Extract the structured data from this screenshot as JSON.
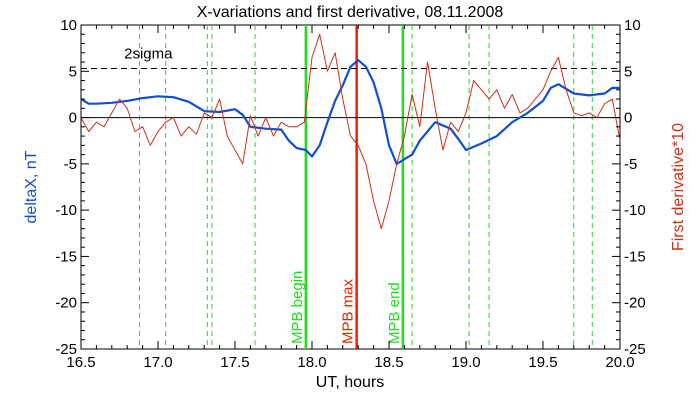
{
  "chart_data": {
    "type": "line",
    "title": "X-variations and first derivative, 08.11.2008",
    "xlabel": "UT, hours",
    "ylabel_left": "deltaX, nT",
    "ylabel_right": "First derivative*10",
    "xlim": [
      16.5,
      20.0
    ],
    "ylim": [
      -25,
      10
    ],
    "y2lim": [
      -25,
      10
    ],
    "x_ticks": [
      "16.5",
      "17.0",
      "17.5",
      "18.0",
      "18.5",
      "19.0",
      "19.5",
      "20.0"
    ],
    "y_ticks": [
      "10",
      "5",
      "0",
      "-5",
      "-10",
      "-15",
      "-20",
      "-25"
    ],
    "y2_ticks": [
      "10",
      "5",
      "0",
      "-5",
      "-10",
      "-15",
      "-20",
      "-25"
    ],
    "grid": false,
    "colors": {
      "deltaX": "#1050d0",
      "derivative": "#c83218",
      "mpb_edges": "#22dd22",
      "mpb_max": "#ee2200",
      "dashed_green": "#33cc33",
      "threshold": "#000000"
    },
    "series": [
      {
        "axis": "left",
        "x": [
          16.5,
          16.55,
          16.6,
          16.7,
          16.8,
          16.9,
          17.0,
          17.1,
          17.2,
          17.3,
          17.4,
          17.5,
          17.55,
          17.6,
          17.7,
          17.8,
          17.85,
          17.9,
          17.96,
          18.0,
          18.05,
          18.1,
          18.15,
          18.2,
          18.25,
          18.3,
          18.35,
          18.4,
          18.45,
          18.5,
          18.55,
          18.6,
          18.65,
          18.7,
          18.8,
          18.9,
          18.95,
          19.0,
          19.1,
          19.2,
          19.3,
          19.4,
          19.5,
          19.55,
          19.6,
          19.7,
          19.8,
          19.85,
          19.9,
          19.95,
          20.0
        ],
        "y": [
          2.0,
          1.5,
          1.5,
          1.6,
          1.8,
          2.1,
          2.3,
          2.2,
          1.7,
          0.7,
          0.6,
          0.9,
          0.3,
          -1.0,
          -1.2,
          -1.3,
          -2.5,
          -3.3,
          -3.5,
          -4.2,
          -3.0,
          -0.5,
          1.8,
          3.5,
          5.5,
          6.2,
          5.5,
          3.8,
          1.0,
          -3.0,
          -5.0,
          -4.5,
          -4.0,
          -2.5,
          -0.5,
          -1.2,
          -2.3,
          -3.5,
          -2.8,
          -2.0,
          -0.5,
          0.5,
          1.8,
          3.2,
          3.6,
          2.6,
          2.4,
          2.5,
          2.6,
          3.2,
          3.2
        ]
      },
      {
        "axis": "right",
        "x": [
          16.5,
          16.55,
          16.6,
          16.65,
          16.7,
          16.75,
          16.8,
          16.85,
          16.9,
          16.95,
          17.0,
          17.05,
          17.1,
          17.15,
          17.2,
          17.25,
          17.3,
          17.35,
          17.4,
          17.45,
          17.5,
          17.55,
          17.6,
          17.65,
          17.7,
          17.75,
          17.8,
          17.85,
          17.9,
          17.95,
          18.0,
          18.05,
          18.1,
          18.15,
          18.2,
          18.25,
          18.3,
          18.35,
          18.4,
          18.45,
          18.5,
          18.55,
          18.6,
          18.65,
          18.7,
          18.75,
          18.8,
          18.85,
          18.9,
          18.95,
          19.0,
          19.05,
          19.1,
          19.15,
          19.2,
          19.25,
          19.3,
          19.35,
          19.4,
          19.45,
          19.5,
          19.55,
          19.6,
          19.65,
          19.7,
          19.75,
          19.8,
          19.85,
          19.9,
          19.95,
          20.0
        ],
        "y": [
          0,
          -1.5,
          -0.5,
          -1.0,
          0.5,
          2.0,
          1.0,
          -1.5,
          -1.0,
          -3.0,
          -1.5,
          -0.5,
          0,
          -2.0,
          -1.0,
          -1.8,
          0.5,
          0,
          2.0,
          -2.0,
          -3.5,
          -5.0,
          0.2,
          -2.0,
          0.0,
          -2.0,
          -0.5,
          -1.0,
          -1.0,
          -0.5,
          6.5,
          9.0,
          5.0,
          7.0,
          2.0,
          -2.0,
          -3.0,
          -5.0,
          -9.0,
          -12.0,
          -9.0,
          -5.0,
          -2.0,
          2.5,
          -1.0,
          6.0,
          1.0,
          -3.5,
          -0.5,
          -1.5,
          0.5,
          4.0,
          3.0,
          2.0,
          3.0,
          1.0,
          2.5,
          0.5,
          1.0,
          2.0,
          3.0,
          5.0,
          6.5,
          3.0,
          0.5,
          0.2,
          0.5,
          0.0,
          1.5,
          2.0,
          -2.5
        ]
      }
    ],
    "threshold": {
      "label": "2sigma",
      "y": 5.3
    },
    "zero_line": 0,
    "dashed_lines_x": [
      16.88,
      17.05,
      17.32,
      17.35,
      17.63,
      18.65,
      19.02,
      19.15,
      19.7,
      19.82
    ],
    "markers": [
      {
        "label": "MPB begin",
        "x": 17.96
      },
      {
        "label": "MPB max",
        "x": 18.29
      },
      {
        "label": "MPB end",
        "x": 18.59
      }
    ]
  }
}
